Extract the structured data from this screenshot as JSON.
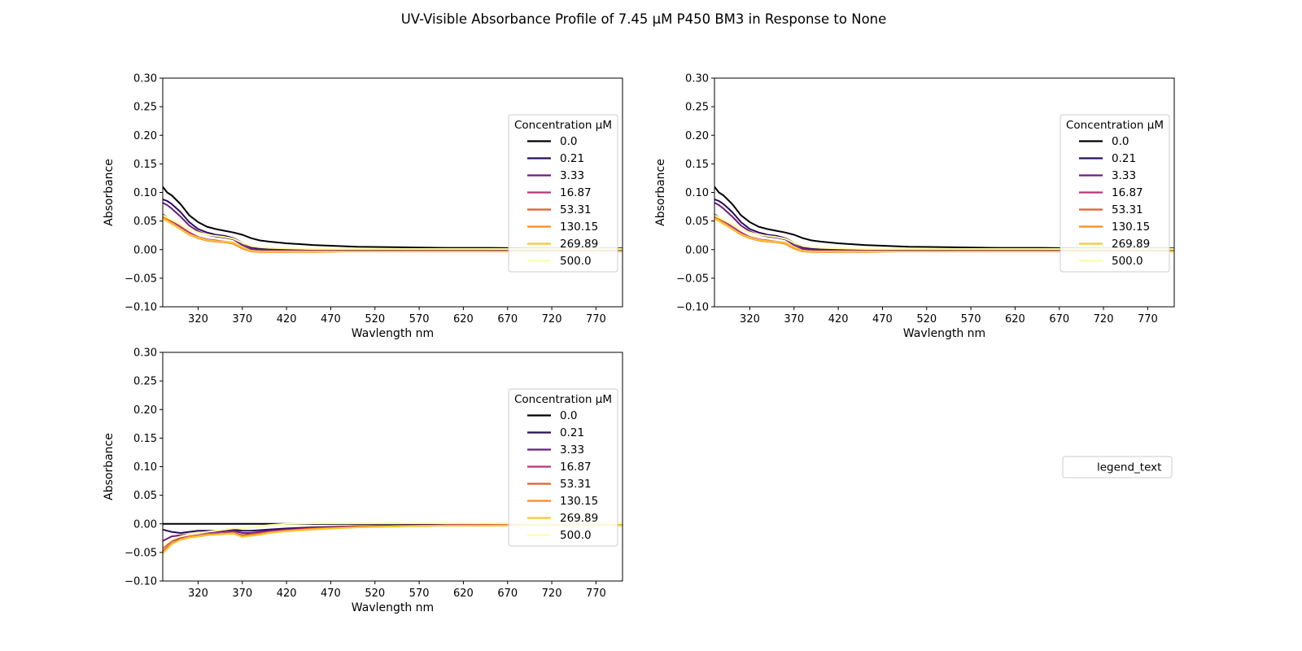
{
  "figure": {
    "title": "UV-Visible Absorbance Profile of 7.45 µM P450 BM3 in Response to None"
  },
  "chart_data": [
    {
      "type": "line",
      "panel": "top-left",
      "xlabel": "Wavlength nm",
      "ylabel": "Absorbance",
      "xlim": [
        280,
        800
      ],
      "ylim": [
        -0.1,
        0.3
      ],
      "xticks": [
        320,
        370,
        420,
        470,
        520,
        570,
        620,
        670,
        720,
        770
      ],
      "yticks": [
        "0.30",
        "0.25",
        "0.20",
        "0.15",
        "0.10",
        "0.05",
        "0.00",
        "−0.05",
        "−0.10"
      ],
      "legend": {
        "title": "Concentration µM",
        "placement": "center-right"
      },
      "x": [
        280,
        285,
        290,
        300,
        310,
        320,
        330,
        340,
        350,
        360,
        370,
        380,
        390,
        400,
        420,
        450,
        500,
        550,
        600,
        650,
        700,
        750,
        800
      ],
      "series": [
        {
          "name": "0.0",
          "color": "#000004",
          "values": [
            0.11,
            0.1,
            0.095,
            0.08,
            0.06,
            0.048,
            0.04,
            0.036,
            0.033,
            0.03,
            0.026,
            0.02,
            0.016,
            0.014,
            0.011,
            0.008,
            0.005,
            0.004,
            0.003,
            0.003,
            0.002,
            0.002,
            0.002
          ]
        },
        {
          "name": "0.21",
          "color": "#2a0b59",
          "values": [
            0.088,
            0.085,
            0.08,
            0.066,
            0.048,
            0.036,
            0.03,
            0.026,
            0.024,
            0.02,
            0.012,
            0.004,
            0.002,
            0.001,
            0.0,
            0.0,
            0.0,
            -0.001,
            -0.001,
            -0.001,
            -0.001,
            -0.002,
            -0.002
          ]
        },
        {
          "name": "3.33",
          "color": "#6b1d81",
          "values": [
            0.082,
            0.078,
            0.072,
            0.058,
            0.042,
            0.032,
            0.026,
            0.023,
            0.021,
            0.018,
            0.008,
            0.001,
            0.0,
            -0.001,
            -0.001,
            -0.001,
            -0.002,
            -0.002,
            -0.002,
            -0.002,
            -0.002,
            -0.002,
            -0.002
          ]
        },
        {
          "name": "16.87",
          "color": "#b5367a",
          "values": [
            0.062,
            0.056,
            0.05,
            0.04,
            0.03,
            0.022,
            0.018,
            0.016,
            0.014,
            0.012,
            0.004,
            -0.002,
            -0.003,
            -0.003,
            -0.003,
            -0.003,
            -0.003,
            -0.003,
            -0.003,
            -0.003,
            -0.003,
            -0.003,
            -0.003
          ]
        },
        {
          "name": "53.31",
          "color": "#e55c30",
          "values": [
            0.058,
            0.053,
            0.046,
            0.036,
            0.027,
            0.02,
            0.016,
            0.014,
            0.013,
            0.011,
            0.002,
            -0.003,
            -0.004,
            -0.004,
            -0.004,
            -0.003,
            -0.003,
            -0.003,
            -0.003,
            -0.003,
            -0.003,
            -0.003,
            -0.003
          ]
        },
        {
          "name": "130.15",
          "color": "#fb8a1e",
          "values": [
            0.056,
            0.052,
            0.046,
            0.036,
            0.026,
            0.02,
            0.016,
            0.014,
            0.013,
            0.01,
            0.002,
            -0.003,
            -0.004,
            -0.004,
            -0.004,
            -0.004,
            -0.003,
            -0.003,
            -0.003,
            -0.003,
            -0.003,
            -0.003,
            -0.003
          ]
        },
        {
          "name": "269.89",
          "color": "#f9c72e",
          "values": [
            0.054,
            0.05,
            0.045,
            0.036,
            0.027,
            0.021,
            0.017,
            0.015,
            0.014,
            0.012,
            0.004,
            -0.002,
            -0.003,
            -0.003,
            -0.003,
            -0.003,
            -0.003,
            -0.003,
            -0.003,
            -0.003,
            -0.003,
            -0.003,
            -0.003
          ]
        },
        {
          "name": "500.0",
          "color": "#fcffa4",
          "values": [
            0.06,
            0.056,
            0.052,
            0.044,
            0.036,
            0.03,
            0.026,
            0.024,
            0.022,
            0.019,
            0.012,
            0.006,
            0.004,
            0.003,
            0.002,
            0.001,
            0.001,
            0.001,
            0.001,
            0.001,
            0.001,
            0.001,
            0.001
          ]
        }
      ]
    },
    {
      "type": "line",
      "panel": "top-right",
      "xlabel": "Wavlength nm",
      "ylabel": "Absorbance",
      "xlim": [
        280,
        800
      ],
      "ylim": [
        -0.1,
        0.3
      ],
      "xticks": [
        320,
        370,
        420,
        470,
        520,
        570,
        620,
        670,
        720,
        770
      ],
      "yticks": [
        "0.30",
        "0.25",
        "0.20",
        "0.15",
        "0.10",
        "0.05",
        "0.00",
        "−0.05",
        "−0.10"
      ],
      "legend": {
        "title": "Concentration µM",
        "placement": "center-right"
      },
      "x": [
        280,
        285,
        290,
        300,
        310,
        320,
        330,
        340,
        350,
        360,
        370,
        380,
        390,
        400,
        420,
        450,
        500,
        550,
        600,
        650,
        700,
        750,
        800
      ],
      "series": [
        {
          "name": "0.0",
          "color": "#000004",
          "values": [
            0.11,
            0.1,
            0.095,
            0.08,
            0.06,
            0.048,
            0.04,
            0.036,
            0.033,
            0.03,
            0.026,
            0.02,
            0.016,
            0.014,
            0.011,
            0.008,
            0.005,
            0.004,
            0.003,
            0.003,
            0.002,
            0.002,
            0.002
          ]
        },
        {
          "name": "0.21",
          "color": "#2a0b59",
          "values": [
            0.088,
            0.085,
            0.08,
            0.066,
            0.048,
            0.036,
            0.03,
            0.026,
            0.024,
            0.02,
            0.012,
            0.004,
            0.002,
            0.001,
            0.0,
            0.0,
            0.0,
            -0.001,
            -0.001,
            -0.001,
            -0.001,
            -0.002,
            -0.002
          ]
        },
        {
          "name": "3.33",
          "color": "#6b1d81",
          "values": [
            0.082,
            0.078,
            0.072,
            0.058,
            0.042,
            0.032,
            0.026,
            0.023,
            0.021,
            0.018,
            0.008,
            0.001,
            0.0,
            -0.001,
            -0.001,
            -0.001,
            -0.002,
            -0.002,
            -0.002,
            -0.002,
            -0.002,
            -0.002,
            -0.002
          ]
        },
        {
          "name": "16.87",
          "color": "#b5367a",
          "values": [
            0.062,
            0.056,
            0.05,
            0.04,
            0.03,
            0.022,
            0.018,
            0.016,
            0.014,
            0.012,
            0.004,
            -0.002,
            -0.003,
            -0.003,
            -0.003,
            -0.003,
            -0.003,
            -0.003,
            -0.003,
            -0.003,
            -0.003,
            -0.003,
            -0.003
          ]
        },
        {
          "name": "53.31",
          "color": "#e55c30",
          "values": [
            0.058,
            0.053,
            0.046,
            0.036,
            0.027,
            0.02,
            0.016,
            0.014,
            0.013,
            0.011,
            0.002,
            -0.003,
            -0.004,
            -0.004,
            -0.004,
            -0.003,
            -0.003,
            -0.003,
            -0.003,
            -0.003,
            -0.003,
            -0.003,
            -0.003
          ]
        },
        {
          "name": "130.15",
          "color": "#fb8a1e",
          "values": [
            0.056,
            0.052,
            0.046,
            0.036,
            0.026,
            0.02,
            0.016,
            0.014,
            0.013,
            0.01,
            0.002,
            -0.003,
            -0.004,
            -0.004,
            -0.004,
            -0.004,
            -0.003,
            -0.003,
            -0.003,
            -0.003,
            -0.003,
            -0.003,
            -0.003
          ]
        },
        {
          "name": "269.89",
          "color": "#f9c72e",
          "values": [
            0.054,
            0.05,
            0.045,
            0.036,
            0.027,
            0.021,
            0.017,
            0.015,
            0.014,
            0.012,
            0.004,
            -0.002,
            -0.003,
            -0.003,
            -0.003,
            -0.003,
            -0.003,
            -0.003,
            -0.003,
            -0.003,
            -0.003,
            -0.003,
            -0.003
          ]
        },
        {
          "name": "500.0",
          "color": "#fcffa4",
          "values": [
            0.06,
            0.056,
            0.052,
            0.044,
            0.036,
            0.03,
            0.026,
            0.024,
            0.022,
            0.019,
            0.012,
            0.006,
            0.004,
            0.003,
            0.002,
            0.001,
            0.001,
            0.001,
            0.001,
            0.001,
            0.001,
            0.001,
            0.001
          ]
        }
      ]
    },
    {
      "type": "line",
      "panel": "bottom-left",
      "xlabel": "Wavlength nm",
      "ylabel": "Absorbance",
      "xlim": [
        280,
        800
      ],
      "ylim": [
        -0.1,
        0.3
      ],
      "xticks": [
        320,
        370,
        420,
        470,
        520,
        570,
        620,
        670,
        720,
        770
      ],
      "yticks": [
        "0.30",
        "0.25",
        "0.20",
        "0.15",
        "0.10",
        "0.05",
        "0.00",
        "−0.05",
        "−0.10"
      ],
      "legend": {
        "title": "Concentration µM",
        "placement": "center-right"
      },
      "x": [
        280,
        285,
        290,
        300,
        310,
        320,
        330,
        340,
        350,
        360,
        370,
        380,
        390,
        400,
        420,
        450,
        500,
        550,
        600,
        650,
        700,
        750,
        800
      ],
      "series": [
        {
          "name": "0.0",
          "color": "#000004",
          "values": [
            0,
            0,
            0,
            0,
            0,
            0,
            0,
            0,
            0,
            0,
            0,
            0,
            0,
            0,
            0,
            0,
            0,
            0,
            0,
            0,
            0,
            0,
            0
          ]
        },
        {
          "name": "0.21",
          "color": "#2a0b59",
          "values": [
            -0.01,
            -0.012,
            -0.014,
            -0.016,
            -0.014,
            -0.012,
            -0.012,
            -0.012,
            -0.011,
            -0.01,
            -0.012,
            -0.012,
            -0.011,
            -0.01,
            -0.008,
            -0.006,
            -0.004,
            -0.003,
            -0.002,
            -0.001,
            0.0,
            0.0,
            0.0
          ]
        },
        {
          "name": "3.33",
          "color": "#6b1d81",
          "values": [
            -0.03,
            -0.026,
            -0.022,
            -0.02,
            -0.018,
            -0.016,
            -0.015,
            -0.014,
            -0.013,
            -0.012,
            -0.016,
            -0.016,
            -0.014,
            -0.012,
            -0.01,
            -0.007,
            -0.004,
            -0.003,
            -0.002,
            -0.001,
            -0.001,
            0.0,
            0.0
          ]
        },
        {
          "name": "16.87",
          "color": "#b5367a",
          "values": [
            -0.042,
            -0.036,
            -0.03,
            -0.025,
            -0.022,
            -0.02,
            -0.018,
            -0.017,
            -0.016,
            -0.015,
            -0.02,
            -0.018,
            -0.016,
            -0.014,
            -0.011,
            -0.008,
            -0.005,
            -0.003,
            -0.002,
            -0.002,
            -0.001,
            -0.001,
            -0.001
          ]
        },
        {
          "name": "53.31",
          "color": "#e55c30",
          "values": [
            -0.048,
            -0.04,
            -0.034,
            -0.028,
            -0.024,
            -0.022,
            -0.02,
            -0.018,
            -0.017,
            -0.016,
            -0.021,
            -0.019,
            -0.017,
            -0.015,
            -0.012,
            -0.008,
            -0.005,
            -0.004,
            -0.003,
            -0.002,
            -0.002,
            -0.002,
            -0.002
          ]
        },
        {
          "name": "130.15",
          "color": "#fb8a1e",
          "values": [
            -0.05,
            -0.042,
            -0.034,
            -0.027,
            -0.023,
            -0.021,
            -0.019,
            -0.018,
            -0.017,
            -0.016,
            -0.022,
            -0.02,
            -0.018,
            -0.015,
            -0.012,
            -0.009,
            -0.006,
            -0.004,
            -0.003,
            -0.003,
            -0.002,
            -0.002,
            -0.002
          ]
        },
        {
          "name": "269.89",
          "color": "#f9c72e",
          "values": [
            -0.052,
            -0.044,
            -0.036,
            -0.028,
            -0.024,
            -0.022,
            -0.02,
            -0.019,
            -0.018,
            -0.017,
            -0.023,
            -0.021,
            -0.019,
            -0.016,
            -0.013,
            -0.01,
            -0.006,
            -0.004,
            -0.003,
            -0.003,
            -0.002,
            -0.002,
            -0.002
          ]
        },
        {
          "name": "500.0",
          "color": "#fcffa4",
          "values": [
            -0.04,
            -0.034,
            -0.028,
            -0.022,
            -0.018,
            -0.016,
            -0.014,
            -0.012,
            -0.01,
            -0.008,
            -0.008,
            -0.006,
            -0.004,
            -0.002,
            0.0,
            0.001,
            0.001,
            0.001,
            0.001,
            0.001,
            0.001,
            0.001,
            0.001
          ]
        }
      ]
    }
  ],
  "empty_panel": {
    "legend_label": "legend_text"
  }
}
